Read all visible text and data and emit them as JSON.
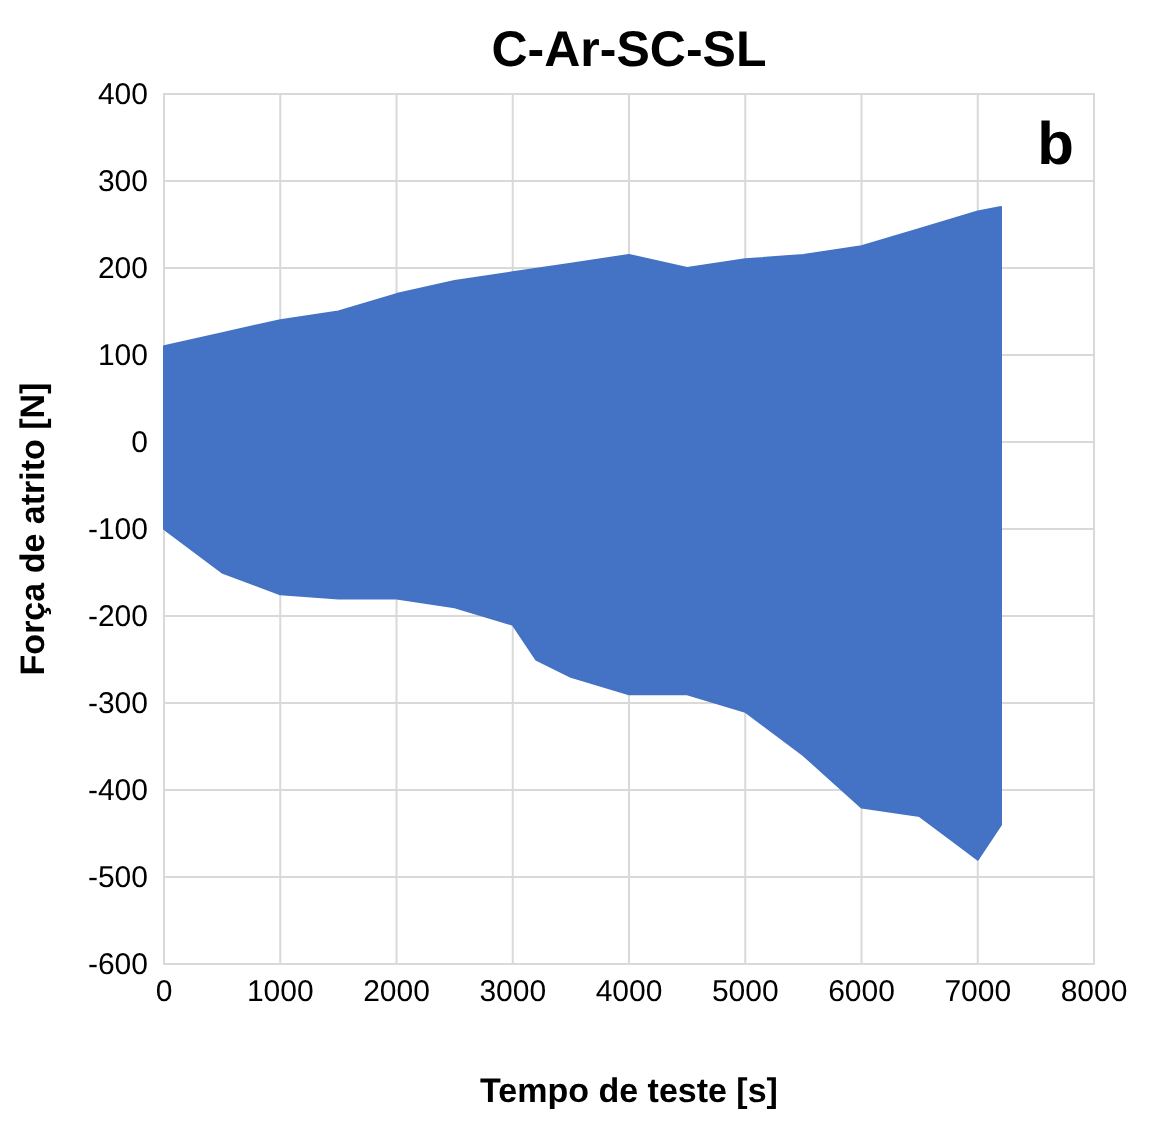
{
  "chart_data": {
    "type": "area",
    "title": "C-Ar-SC-SL",
    "xlabel": "Tempo de teste [s]",
    "ylabel": "Força de atrito [N]",
    "annotations": [
      "b"
    ],
    "xlim": [
      0,
      8000
    ],
    "xticks": [
      0,
      1000,
      2000,
      3000,
      4000,
      5000,
      6000,
      7000,
      8000
    ],
    "ylim": [
      -600,
      400
    ],
    "yticks": [
      -600,
      -500,
      -400,
      -300,
      -200,
      -100,
      0,
      100,
      200,
      300,
      400
    ],
    "grid": true,
    "series": [
      {
        "color": "#4472c4",
        "x": [
          0,
          500,
          1000,
          1500,
          2000,
          2500,
          3000,
          3500,
          4000,
          4500,
          5000,
          5500,
          6000,
          6500,
          7000,
          7200
        ],
        "values": [
          110,
          125,
          140,
          150,
          170,
          185,
          195,
          205,
          215,
          200,
          210,
          215,
          225,
          245,
          265,
          270
        ]
      },
      {
        "color": "#4472c4",
        "x": [
          0,
          500,
          1000,
          1500,
          2000,
          2500,
          3000,
          3200,
          3500,
          4000,
          4500,
          5000,
          5500,
          6000,
          6500,
          6800,
          7000,
          7200
        ],
        "values": [
          -100,
          -150,
          -175,
          -180,
          -180,
          -190,
          -210,
          -250,
          -270,
          -290,
          -290,
          -310,
          -360,
          -420,
          -430,
          -460,
          -480,
          -440
        ]
      }
    ]
  }
}
